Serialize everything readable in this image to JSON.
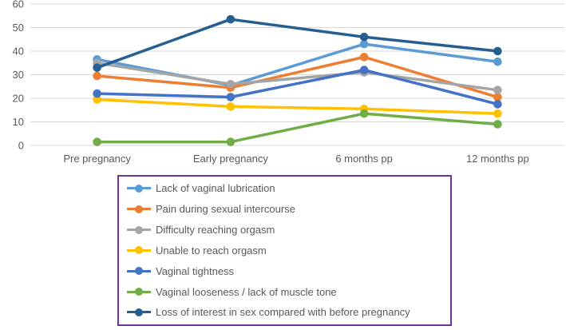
{
  "chart_data": {
    "type": "line",
    "title": "",
    "xlabel": "",
    "ylabel": "",
    "categories": [
      "Pre pregnancy",
      "Early pregnancy",
      "6 months pp",
      "12 months pp"
    ],
    "series": [
      {
        "name": "Lack of vaginal lubrication",
        "color": "#5B9BD5",
        "values": [
          36.5,
          25.5,
          43,
          35.5
        ]
      },
      {
        "name": "Pain during sexual intercourse",
        "color": "#ED7D31",
        "values": [
          29.5,
          24.5,
          37.5,
          20.5
        ]
      },
      {
        "name": "Difficulty reaching orgasm",
        "color": "#A5A5A5",
        "values": [
          35,
          26,
          31,
          23.5
        ]
      },
      {
        "name": "Unable to reach orgasm",
        "color": "#FFC000",
        "values": [
          19.5,
          16.5,
          15.5,
          13.5
        ]
      },
      {
        "name": "Vaginal tightness",
        "color": "#4472C4",
        "values": [
          22,
          20.5,
          32,
          17.5
        ]
      },
      {
        "name": "Vaginal looseness / lack of muscle tone",
        "color": "#70AD47",
        "values": [
          1.5,
          1.5,
          13.5,
          9
        ]
      },
      {
        "name": "Loss of interest in sex compared with before pregnancy",
        "color": "#255E91",
        "values": [
          33,
          53.5,
          46,
          40
        ]
      }
    ],
    "yaxis": {
      "min": 0,
      "max": 60,
      "step": 10,
      "tick_labels": [
        "0",
        "10",
        "20",
        "30",
        "40",
        "50",
        "60"
      ]
    },
    "grid": "horizontal",
    "legend_position": "bottom",
    "legend_border_color": "#7030A0",
    "axis_text_color": "#595959",
    "gridline_color": "#D9D9D9"
  }
}
